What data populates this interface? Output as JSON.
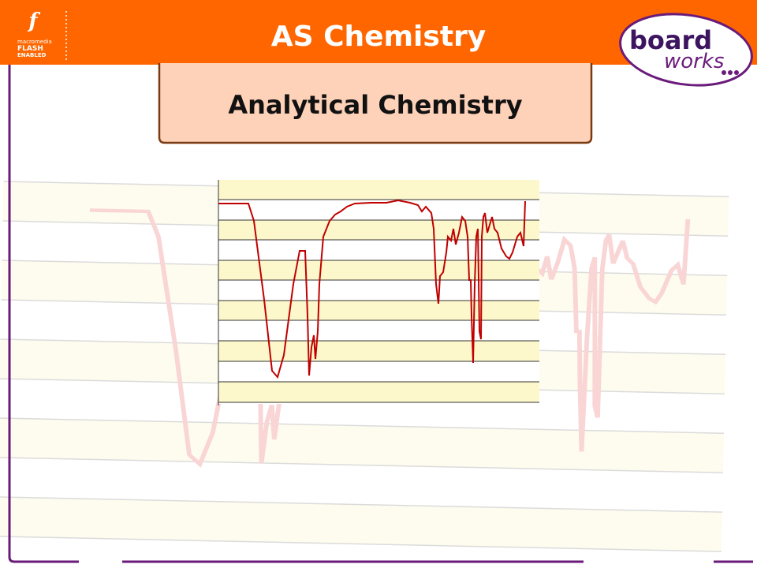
{
  "header": {
    "title": "AS Chemistry",
    "subtitle": "Analytical Chemistry"
  },
  "badge": {
    "line1": "macromedia",
    "line2": "FLASH",
    "line3": "ENABLED"
  },
  "logo": {
    "line1": "board",
    "line2": "works"
  }
}
